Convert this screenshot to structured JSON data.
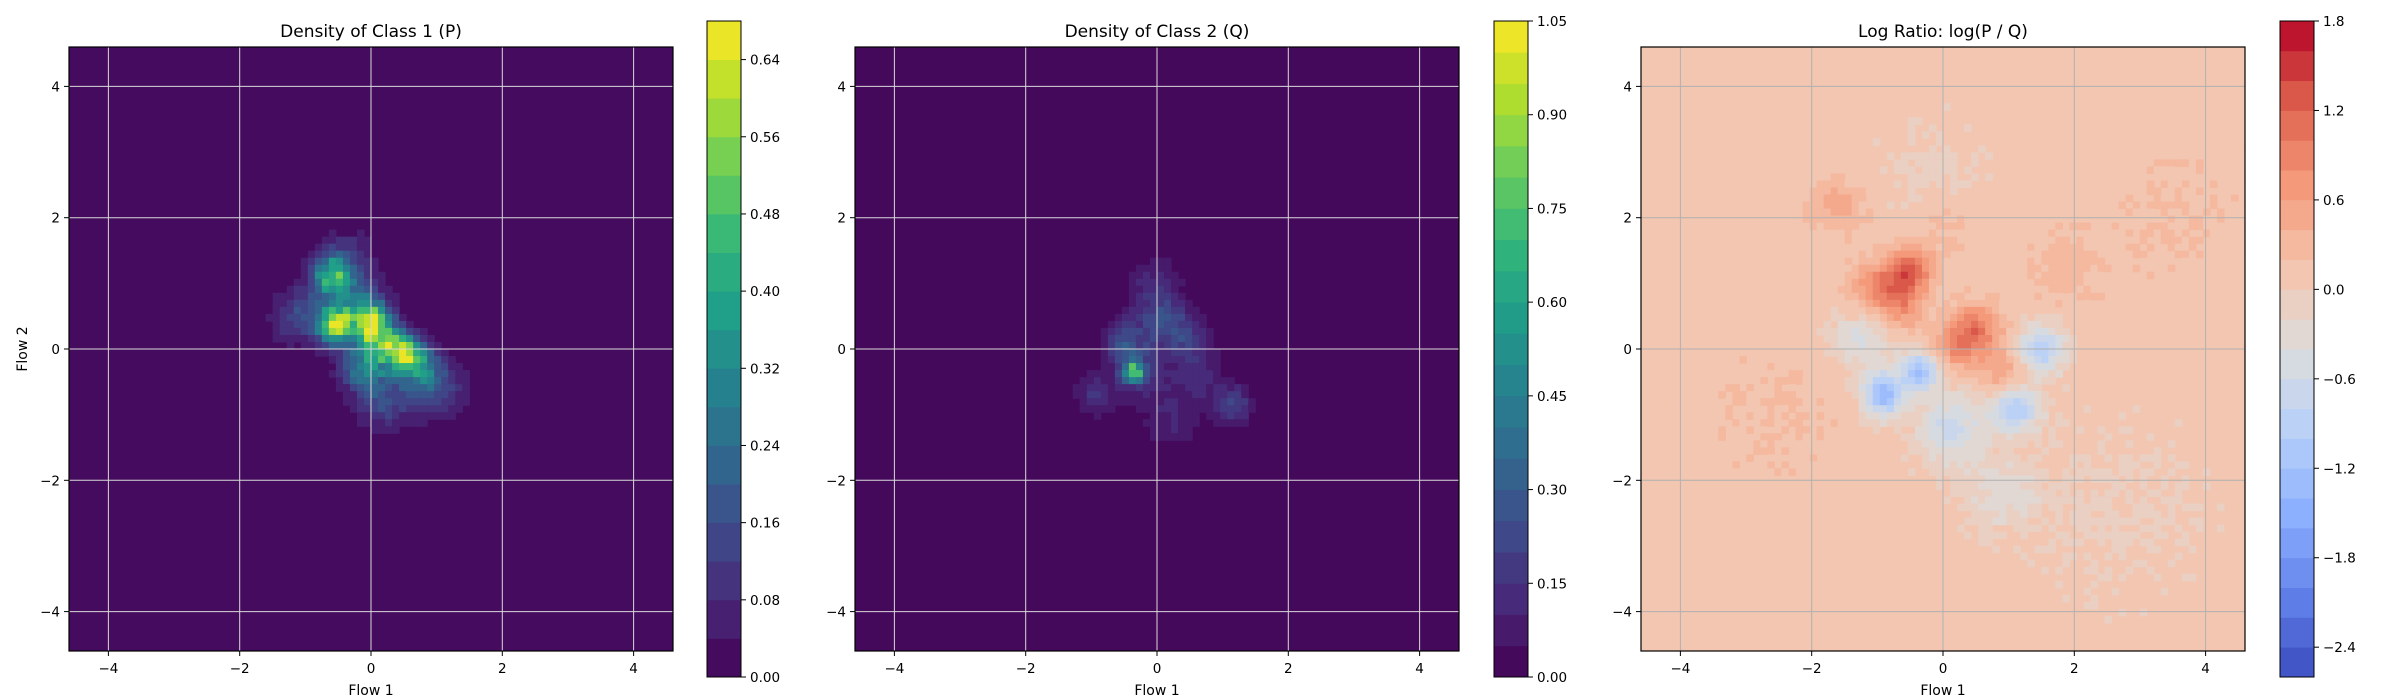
{
  "chart_data": [
    {
      "type": "heatmap",
      "title": "Density of Class 1 (P)",
      "xlabel": "Flow 1",
      "ylabel": "Flow 2",
      "xlim": [
        -4.6,
        4.6
      ],
      "ylim": [
        -4.6,
        4.6
      ],
      "xticks": [
        -4,
        -2,
        0,
        2,
        4
      ],
      "yticks": [
        -4,
        -2,
        0,
        2,
        4
      ],
      "xtick_labels": [
        "−4",
        "−2",
        "0",
        "2",
        "4"
      ],
      "ytick_labels": [
        "−4",
        "−2",
        "0",
        "2",
        "4"
      ],
      "grid": true,
      "colormap": "viridis",
      "colorbar": {
        "range": [
          0.0,
          0.68
        ],
        "levels": 17,
        "ticks": [
          0.0,
          0.08,
          0.16,
          0.24,
          0.32,
          0.4,
          0.48,
          0.56,
          0.64
        ],
        "tick_labels": [
          "0.00",
          "0.08",
          "0.16",
          "0.24",
          "0.32",
          "0.40",
          "0.48",
          "0.56",
          "0.64"
        ]
      },
      "background_color": "#440154",
      "peaks": [
        {
          "x": -0.6,
          "y": 1.1,
          "value": 0.4,
          "spread": 0.2
        },
        {
          "x": -0.55,
          "y": 0.35,
          "value": 0.58,
          "spread": 0.18
        },
        {
          "x": 0.0,
          "y": 0.45,
          "value": 0.44,
          "spread": 0.2
        },
        {
          "x": 0.1,
          "y": 0.15,
          "value": 0.36,
          "spread": 0.22
        },
        {
          "x": 0.45,
          "y": -0.05,
          "value": 0.46,
          "spread": 0.2
        },
        {
          "x": 0.7,
          "y": -0.25,
          "value": 0.3,
          "spread": 0.22
        },
        {
          "x": -0.1,
          "y": -0.3,
          "value": 0.26,
          "spread": 0.25
        },
        {
          "x": -0.3,
          "y": 0.7,
          "value": 0.22,
          "spread": 0.3
        },
        {
          "x": -1.1,
          "y": 0.5,
          "value": 0.14,
          "spread": 0.3
        },
        {
          "x": 1.0,
          "y": -0.6,
          "value": 0.16,
          "spread": 0.3
        },
        {
          "x": 0.2,
          "y": -0.8,
          "value": 0.14,
          "spread": 0.3
        },
        {
          "x": -0.4,
          "y": 1.4,
          "value": 0.12,
          "spread": 0.3
        }
      ]
    },
    {
      "type": "heatmap",
      "title": "Density of Class 2 (Q)",
      "xlabel": "Flow 1",
      "ylabel": "",
      "xlim": [
        -4.6,
        4.6
      ],
      "ylim": [
        -4.6,
        4.6
      ],
      "xticks": [
        -4,
        -2,
        0,
        2,
        4
      ],
      "yticks": [
        -4,
        -2,
        0,
        2,
        4
      ],
      "xtick_labels": [
        "−4",
        "−2",
        "0",
        "2",
        "4"
      ],
      "ytick_labels": [
        "−4",
        "−2",
        "0",
        "2",
        "4"
      ],
      "grid": true,
      "colormap": "viridis",
      "colorbar": {
        "range": [
          0.0,
          1.05
        ],
        "levels": 21,
        "ticks": [
          0.0,
          0.15,
          0.3,
          0.45,
          0.6,
          0.75,
          0.9,
          1.05
        ],
        "tick_labels": [
          "0.00",
          "0.15",
          "0.30",
          "0.45",
          "0.60",
          "0.75",
          "0.90",
          "1.05"
        ]
      },
      "background_color": "#440154",
      "peaks": [
        {
          "x": -0.35,
          "y": -0.35,
          "value": 0.6,
          "spread": 0.1
        },
        {
          "x": -0.3,
          "y": -0.3,
          "value": 0.22,
          "spread": 0.28
        },
        {
          "x": -0.5,
          "y": 0.15,
          "value": 0.22,
          "spread": 0.22
        },
        {
          "x": 0.05,
          "y": 0.5,
          "value": 0.2,
          "spread": 0.25
        },
        {
          "x": 0.4,
          "y": 0.2,
          "value": 0.18,
          "spread": 0.25
        },
        {
          "x": 1.15,
          "y": -0.85,
          "value": 0.22,
          "spread": 0.2
        },
        {
          "x": -0.95,
          "y": -0.7,
          "value": 0.14,
          "spread": 0.22
        },
        {
          "x": 0.6,
          "y": -0.4,
          "value": 0.12,
          "spread": 0.3
        },
        {
          "x": -0.05,
          "y": 1.0,
          "value": 0.1,
          "spread": 0.3
        },
        {
          "x": 0.2,
          "y": -1.1,
          "value": 0.1,
          "spread": 0.3
        }
      ]
    },
    {
      "type": "heatmap",
      "title": "Log Ratio: log(P / Q)",
      "xlabel": "Flow 1",
      "ylabel": "",
      "xlim": [
        -4.6,
        4.6
      ],
      "ylim": [
        -4.6,
        4.6
      ],
      "xticks": [
        -4,
        -2,
        0,
        2,
        4
      ],
      "yticks": [
        -4,
        -2,
        0,
        2,
        4
      ],
      "xtick_labels": [
        "−4",
        "−2",
        "0",
        "2",
        "4"
      ],
      "ytick_labels": [
        "−4",
        "−2",
        "0",
        "2",
        "4"
      ],
      "grid": true,
      "colormap": "coolwarm",
      "colorbar": {
        "range": [
          -2.6,
          1.8
        ],
        "levels": 22,
        "ticks": [
          -2.4,
          -1.8,
          -1.2,
          -0.6,
          0.0,
          0.6,
          1.2,
          1.8
        ],
        "tick_labels": [
          "−2.4",
          "−1.8",
          "−1.2",
          "−0.6",
          "0.0",
          "0.6",
          "1.2",
          "1.8"
        ]
      },
      "background_value": 0.05,
      "blobs": [
        {
          "x": -0.5,
          "y": 1.2,
          "value": 1.1,
          "spread": 0.25
        },
        {
          "x": -1.0,
          "y": 0.9,
          "value": 0.8,
          "spread": 0.3
        },
        {
          "x": -0.6,
          "y": 0.6,
          "value": 0.6,
          "spread": 0.25
        },
        {
          "x": 0.5,
          "y": 0.3,
          "value": 0.9,
          "spread": 0.28
        },
        {
          "x": 0.2,
          "y": 0.0,
          "value": 0.6,
          "spread": 0.25
        },
        {
          "x": 0.9,
          "y": -0.4,
          "value": 0.5,
          "spread": 0.25
        },
        {
          "x": -1.6,
          "y": 2.2,
          "value": 0.45,
          "spread": 0.3
        },
        {
          "x": 0.0,
          "y": 1.9,
          "value": 0.25,
          "spread": 0.35
        },
        {
          "x": 1.8,
          "y": 1.2,
          "value": 0.25,
          "spread": 0.4
        },
        {
          "x": -0.9,
          "y": -0.7,
          "value": -1.4,
          "spread": 0.22
        },
        {
          "x": -0.35,
          "y": -0.35,
          "value": -1.3,
          "spread": 0.2
        },
        {
          "x": 1.5,
          "y": 0.0,
          "value": -1.0,
          "spread": 0.25
        },
        {
          "x": 1.1,
          "y": -0.9,
          "value": -1.1,
          "spread": 0.25
        },
        {
          "x": 0.1,
          "y": -1.2,
          "value": -0.7,
          "spread": 0.35
        },
        {
          "x": -1.2,
          "y": 0.2,
          "value": -0.5,
          "spread": 0.35
        },
        {
          "x": 0.9,
          "y": -2.2,
          "value": -0.35,
          "spread": 0.4
        },
        {
          "x": -0.2,
          "y": 2.6,
          "value": -0.2,
          "spread": 0.5
        },
        {
          "x": -2.6,
          "y": -1.0,
          "value": 0.15,
          "spread": 0.8
        },
        {
          "x": 3.5,
          "y": 2.0,
          "value": 0.15,
          "spread": 0.8
        },
        {
          "x": 2.7,
          "y": -2.5,
          "value": -0.15,
          "spread": 0.8
        }
      ]
    }
  ]
}
